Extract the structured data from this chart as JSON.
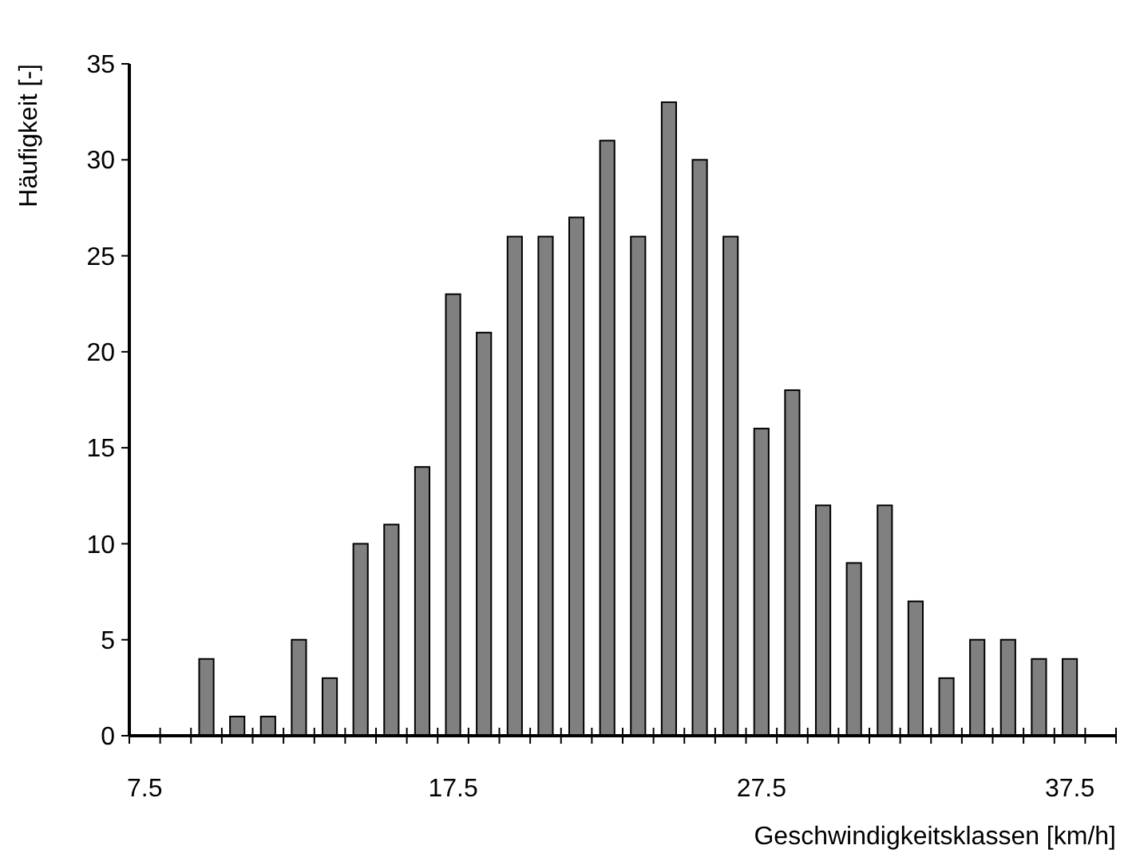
{
  "chart_data": {
    "type": "bar",
    "xlabel": "Geschwindigkeitsklassen [km/h]",
    "ylabel": "Häufigkeit [-]",
    "categories": [
      "7.5",
      null,
      null,
      null,
      null,
      null,
      null,
      null,
      null,
      null,
      "17.5",
      null,
      null,
      null,
      null,
      null,
      null,
      null,
      null,
      null,
      "27.5",
      null,
      null,
      null,
      null,
      null,
      null,
      null,
      null,
      null,
      "37.5",
      null
    ],
    "values": [
      0,
      0,
      4,
      1,
      1,
      5,
      3,
      10,
      11,
      14,
      23,
      21,
      26,
      26,
      27,
      31,
      26,
      33,
      30,
      26,
      16,
      18,
      12,
      9,
      12,
      7,
      3,
      5,
      5,
      4,
      4,
      0
    ],
    "color": "#808080",
    "ylim": [
      0,
      35
    ],
    "yticks": [
      0,
      5,
      10,
      15,
      20,
      25,
      30,
      35
    ],
    "grid": false
  }
}
